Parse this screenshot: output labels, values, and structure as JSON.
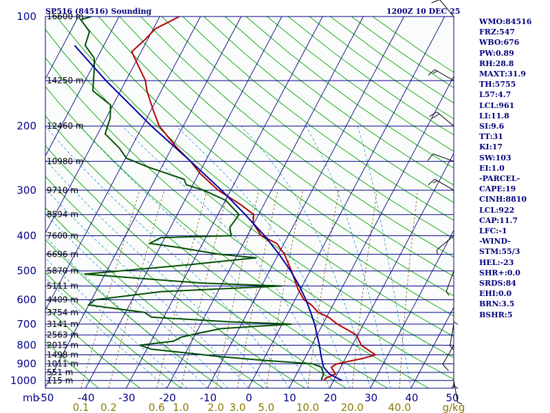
{
  "header": {
    "title": "SP516 (84516) Sounding",
    "time": "1200Z 10 DEC 25"
  },
  "indices": [
    "WMO:84516",
    "FRZ:547",
    "WBO:676",
    "PW:0.89",
    "RH:28.8",
    "MAXT:31.9",
    "TH:5755",
    "L57:4.7",
    "LCL:961",
    "LI:11.8",
    "SI:9.6",
    "TT:31",
    "KI:17",
    "SW:103",
    "EI:1.0",
    "-PARCEL-",
    "CAPE:19",
    "CINH:8810",
    "LCL:922",
    "CAP:11.7",
    "LFC:-1",
    "-WIND-",
    "STM:55/3",
    "HEL:-23",
    "SHR+:0.0",
    "SRDS:84",
    "EHI:0.0",
    "BRN:3.5",
    "BSHR:5"
  ],
  "colors": {
    "isobar": "#00008b",
    "isotherm": "#000080",
    "dry_adiabat": "#00a000",
    "moist_adiabat": "#3f9fcf",
    "mixing_ratio": "#7a5a00",
    "temperature": "#b40000",
    "dewpoint": "#004d00",
    "parcel": "#0000a0",
    "mixing_label": "#8b7a00",
    "header_text": "#00007a"
  },
  "chart_data": {
    "type": "line",
    "title": "SP516 (84516) Sounding",
    "xlabel": "",
    "ylabel": "mb",
    "pressure_ticks": [
      100,
      200,
      300,
      400,
      500,
      600,
      700,
      800,
      900,
      1000
    ],
    "pressure_labels": [
      "100",
      "200",
      "300",
      "400",
      "500",
      "600",
      "700",
      "800",
      "900",
      "1000"
    ],
    "pressure_axis_label": "mb",
    "temp_ticks": [
      -50,
      -40,
      -30,
      -20,
      -10,
      0,
      10,
      20,
      30,
      40,
      50
    ],
    "temp_labels": [
      "-50",
      "-40",
      "-30",
      "-20",
      "-10",
      "0",
      "10",
      "20",
      "30",
      "40",
      "50"
    ],
    "mixing_ratio_values": [
      0.1,
      0.2,
      0.6,
      1.0,
      2.0,
      3.0,
      5.0,
      10.0,
      20.0,
      40.0
    ],
    "mixing_ratio_labels": [
      "0.1",
      "0.2",
      "0.6",
      "1.0",
      "2.0",
      "3.0",
      "5.0",
      "10.0",
      "20.0",
      "40.0"
    ],
    "mixing_ratio_unit": "g/kg",
    "heights": [
      {
        "p": 100,
        "label": "16600 m"
      },
      {
        "p": 150,
        "label": "14250 m"
      },
      {
        "p": 200,
        "label": "12460 m"
      },
      {
        "p": 250,
        "label": "10980 m"
      },
      {
        "p": 300,
        "label": "9710 m"
      },
      {
        "p": 350,
        "label": "8594 m"
      },
      {
        "p": 400,
        "label": "7600 m"
      },
      {
        "p": 450,
        "label": "6696 m"
      },
      {
        "p": 500,
        "label": "5870 m"
      },
      {
        "p": 550,
        "label": "5111 m"
      },
      {
        "p": 600,
        "label": "4409 m"
      },
      {
        "p": 650,
        "label": "3754 m"
      },
      {
        "p": 700,
        "label": "3141 m"
      },
      {
        "p": 750,
        "label": "2563 m"
      },
      {
        "p": 800,
        "label": "2015 m"
      },
      {
        "p": 850,
        "label": "1498 m"
      },
      {
        "p": 900,
        "label": "1011 m"
      },
      {
        "p": 950,
        "label": "551 m"
      },
      {
        "p": 1000,
        "label": "115 m"
      }
    ],
    "series": [
      {
        "key": "temperature",
        "points": [
          [
            1000,
            17.6
          ],
          [
            985,
            17.8
          ],
          [
            960,
            19.6
          ],
          [
            920,
            17.7
          ],
          [
            900,
            18.6
          ],
          [
            870,
            24.2
          ],
          [
            850,
            26.9
          ],
          [
            800,
            22.2
          ],
          [
            750,
            19.7
          ],
          [
            700,
            13.6
          ],
          [
            670,
            10.5
          ],
          [
            650,
            7.4
          ],
          [
            620,
            4.7
          ],
          [
            600,
            2.2
          ],
          [
            560,
            -0.7
          ],
          [
            500,
            -4.6
          ],
          [
            450,
            -8.5
          ],
          [
            420,
            -11.8
          ],
          [
            400,
            -16.6
          ],
          [
            370,
            -20.2
          ],
          [
            350,
            -21.2
          ],
          [
            330,
            -25.4
          ],
          [
            300,
            -33.1
          ],
          [
            270,
            -39.7
          ],
          [
            250,
            -43.6
          ],
          [
            230,
            -48.6
          ],
          [
            200,
            -55.9
          ],
          [
            180,
            -59.6
          ],
          [
            160,
            -63.5
          ],
          [
            150,
            -65.2
          ],
          [
            140,
            -67.9
          ],
          [
            125,
            -72.3
          ],
          [
            115,
            -70.5
          ],
          [
            108,
            -69.5
          ],
          [
            103,
            -66.8
          ],
          [
            100,
            -65.2
          ]
        ]
      },
      {
        "key": "dewpoint",
        "points": [
          [
            1000,
            17.0
          ],
          [
            985,
            16.8
          ],
          [
            960,
            16.7
          ],
          [
            920,
            15.3
          ],
          [
            900,
            12.7
          ],
          [
            880,
            0.0
          ],
          [
            860,
            -10.7
          ],
          [
            820,
            -28.9
          ],
          [
            800,
            -32.2
          ],
          [
            780,
            -24.5
          ],
          [
            760,
            -23.1
          ],
          [
            740,
            -19.0
          ],
          [
            720,
            -14.4
          ],
          [
            700,
            2.2
          ],
          [
            690,
            -12.8
          ],
          [
            670,
            -33.0
          ],
          [
            650,
            -35.3
          ],
          [
            620,
            -50.1
          ],
          [
            600,
            -49.1
          ],
          [
            570,
            -34.0
          ],
          [
            550,
            -5.1
          ],
          [
            540,
            -25.0
          ],
          [
            520,
            -45.0
          ],
          [
            510,
            -55.0
          ],
          [
            480,
            -30.0
          ],
          [
            460,
            -15.0
          ],
          [
            450,
            -24.5
          ],
          [
            430,
            -36.0
          ],
          [
            420,
            -43.0
          ],
          [
            405,
            -41.0
          ],
          [
            400,
            -24.0
          ],
          [
            380,
            -25.4
          ],
          [
            350,
            -24.8
          ],
          [
            320,
            -29.9
          ],
          [
            300,
            -36.7
          ],
          [
            290,
            -41.6
          ],
          [
            280,
            -42.9
          ],
          [
            260,
            -52.9
          ],
          [
            245,
            -59.8
          ],
          [
            230,
            -62.8
          ],
          [
            210,
            -68.2
          ],
          [
            190,
            -69.0
          ],
          [
            175,
            -70.6
          ],
          [
            160,
            -76.8
          ],
          [
            140,
            -79.2
          ],
          [
            130,
            -80.7
          ],
          [
            120,
            -84.6
          ],
          [
            110,
            -85.3
          ],
          [
            102,
            -89.0
          ],
          [
            100,
            -86.8
          ]
        ]
      },
      {
        "key": "parcel",
        "points": [
          [
            1000,
            22.0
          ],
          [
            960,
            18.1
          ],
          [
            920,
            15.8
          ],
          [
            880,
            14.5
          ],
          [
            850,
            13.5
          ],
          [
            800,
            11.9
          ],
          [
            750,
            10.0
          ],
          [
            700,
            8.0
          ],
          [
            650,
            5.5
          ],
          [
            600,
            2.7
          ],
          [
            550,
            -0.7
          ],
          [
            500,
            -4.8
          ],
          [
            450,
            -9.8
          ],
          [
            400,
            -15.8
          ],
          [
            350,
            -23.3
          ],
          [
            300,
            -32.3
          ],
          [
            250,
            -43.6
          ],
          [
            200,
            -57.8
          ],
          [
            150,
            -74.9
          ],
          [
            120,
            -87.2
          ]
        ]
      }
    ]
  },
  "wind_barbs": [
    {
      "p": 100,
      "dir": 320,
      "spd": 10
    },
    {
      "p": 150,
      "dir": 300,
      "spd": 15
    },
    {
      "p": 200,
      "dir": 310,
      "spd": 20
    },
    {
      "p": 250,
      "dir": 290,
      "spd": 10
    },
    {
      "p": 300,
      "dir": 300,
      "spd": 15
    },
    {
      "p": 400,
      "dir": 230,
      "spd": 5
    },
    {
      "p": 500,
      "dir": 200,
      "spd": 5
    },
    {
      "p": 600,
      "dir": 180,
      "spd": 5
    },
    {
      "p": 700,
      "dir": 190,
      "spd": 5
    },
    {
      "p": 800,
      "dir": 210,
      "spd": 10
    },
    {
      "p": 900,
      "dir": 180,
      "spd": 5
    },
    {
      "p": 1000,
      "dir": 170,
      "spd": 5
    }
  ]
}
